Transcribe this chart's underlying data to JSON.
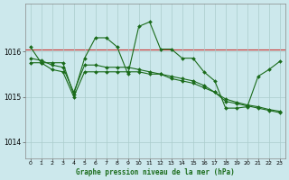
{
  "title": "Graphe pression niveau de la mer (hPa)",
  "background_color": "#cce8ec",
  "grid_color": "#aacccc",
  "line_color": "#1a6b1a",
  "refline_color": "#cc3333",
  "xlim": [
    -0.5,
    23.5
  ],
  "ylim": [
    1013.65,
    1017.05
  ],
  "yticks": [
    1014,
    1015,
    1016
  ],
  "xticks": [
    0,
    1,
    2,
    3,
    4,
    5,
    6,
    7,
    8,
    9,
    10,
    11,
    12,
    13,
    14,
    15,
    16,
    17,
    18,
    19,
    20,
    21,
    22,
    23
  ],
  "refline_y": 1016.05,
  "series1_x": [
    0,
    1,
    2,
    3,
    4,
    5,
    6,
    7,
    8,
    9,
    10,
    11,
    12,
    13,
    14,
    15,
    16,
    17,
    18,
    19,
    20,
    21,
    22,
    23
  ],
  "series1_y": [
    1016.1,
    1015.75,
    1015.75,
    1015.75,
    1015.05,
    1015.85,
    1016.3,
    1016.3,
    1016.1,
    1015.5,
    1016.55,
    1016.65,
    1016.05,
    1016.05,
    1015.85,
    1015.85,
    1015.55,
    1015.35,
    1014.75,
    1014.75,
    1014.78,
    1015.45,
    1015.6,
    1015.78
  ],
  "series2_x": [
    0,
    1,
    2,
    3,
    4,
    5,
    6,
    7,
    8,
    9,
    10,
    11,
    12,
    13,
    14,
    15,
    16,
    17,
    18,
    19,
    20,
    21,
    22,
    23
  ],
  "series2_y": [
    1015.75,
    1015.75,
    1015.6,
    1015.55,
    1015.0,
    1015.55,
    1015.55,
    1015.55,
    1015.55,
    1015.55,
    1015.55,
    1015.5,
    1015.5,
    1015.4,
    1015.35,
    1015.3,
    1015.2,
    1015.1,
    1014.9,
    1014.85,
    1014.8,
    1014.75,
    1014.7,
    1014.65
  ],
  "series3_x": [
    0,
    1,
    2,
    3,
    4,
    5,
    6,
    7,
    8,
    9,
    10,
    11,
    12,
    13,
    14,
    15,
    16,
    17,
    18,
    19,
    20,
    21,
    22,
    23
  ],
  "series3_y": [
    1015.85,
    1015.8,
    1015.7,
    1015.65,
    1015.1,
    1015.7,
    1015.7,
    1015.65,
    1015.65,
    1015.65,
    1015.6,
    1015.55,
    1015.5,
    1015.45,
    1015.4,
    1015.35,
    1015.25,
    1015.1,
    1014.95,
    1014.88,
    1014.82,
    1014.78,
    1014.72,
    1014.68
  ]
}
